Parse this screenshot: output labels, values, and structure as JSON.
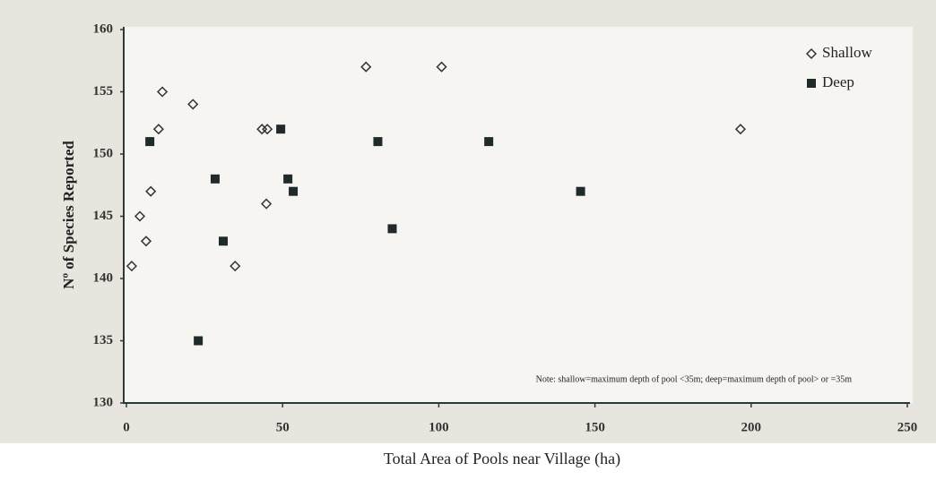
{
  "chart_data": {
    "type": "scatter",
    "x_label": "Total Area of Pools near Village (ha)",
    "y_label": "Nº of Species Reported",
    "note": "Note: shallow=maximum depth of pool <35m; deep=maximum depth of pool> or =35m",
    "xlim": [
      0,
      250
    ],
    "xticks": [
      0,
      50,
      100,
      150,
      200,
      250
    ],
    "ylim": [
      130,
      160
    ],
    "yticks": [
      130,
      135,
      140,
      145,
      150,
      155,
      160
    ],
    "legend": "upper right",
    "series": [
      {
        "name": "Shallow",
        "color": "#333333",
        "marker": "open-diamond",
        "x": [
          1.7,
          4.3,
          6.3,
          7.8,
          10.3,
          11.5,
          21.3,
          34.8,
          43.4,
          45.1,
          44.8,
          76.7,
          100.9,
          196.6
        ],
        "values": [
          141,
          145,
          143,
          147,
          152,
          155,
          154,
          141,
          152,
          152,
          146,
          157,
          157,
          152
        ]
      },
      {
        "name": "Deep",
        "color": "#1f2a2a",
        "marker": "filled-square",
        "x": [
          7.5,
          23,
          28.4,
          31,
          49.4,
          51.7,
          53.4,
          80.5,
          85.1,
          116,
          145.4
        ],
        "values": [
          151,
          135,
          148,
          143,
          152,
          148,
          147,
          151,
          144,
          151,
          147
        ]
      }
    ]
  }
}
